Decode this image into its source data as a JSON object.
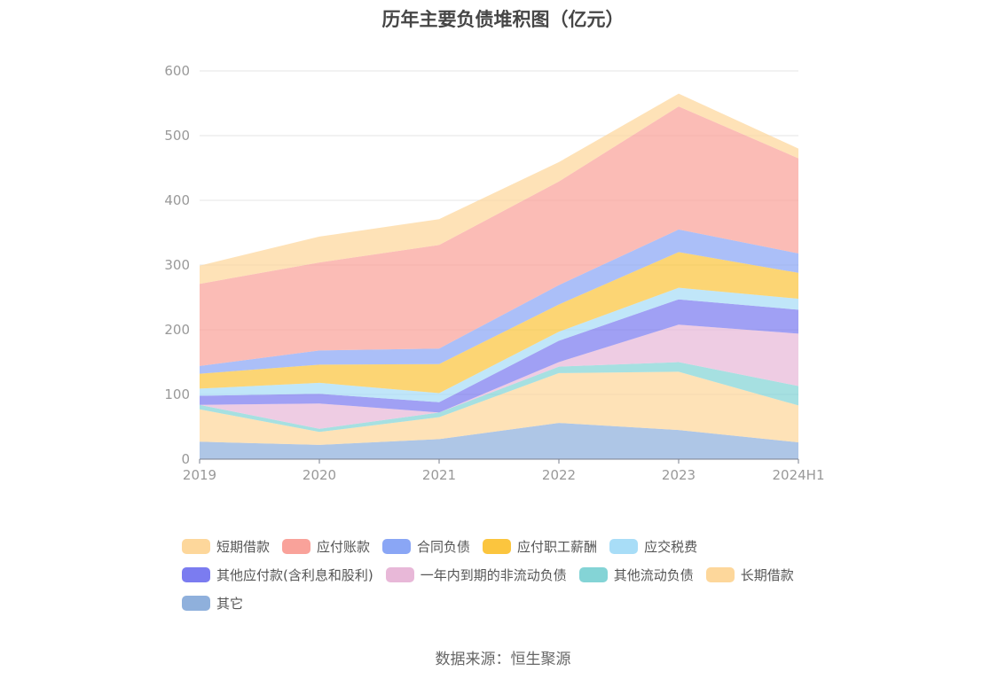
{
  "title": "历年主要负债堆积图（亿元）",
  "source": "数据来源：恒生聚源",
  "chart_data": {
    "type": "area",
    "stacked": true,
    "title": "历年主要负债堆积图（亿元）",
    "xlabel": "",
    "ylabel": "",
    "x": [
      "2019",
      "2020",
      "2021",
      "2022",
      "2023",
      "2024H1"
    ],
    "ylim": [
      0,
      600
    ],
    "yticks": [
      0,
      100,
      200,
      300,
      400,
      500,
      600
    ],
    "grid": true,
    "legend_position": "bottom",
    "series": [
      {
        "name": "其它",
        "color": "#8fb0dc",
        "values": [
          27,
          22,
          31,
          56,
          45,
          26
        ]
      },
      {
        "name": "长期借款",
        "color": "#fdd79b",
        "values": [
          50,
          20,
          34,
          77,
          90,
          57
        ]
      },
      {
        "name": "其他流动负债",
        "color": "#84d4d6",
        "values": [
          7,
          5,
          7,
          10,
          15,
          30
        ]
      },
      {
        "name": "一年内到期的非流动负债",
        "color": "#e8b8d8",
        "values": [
          0,
          39,
          0,
          7,
          58,
          81
        ]
      },
      {
        "name": "其他应付款(含利息和股利)",
        "color": "#7b7cf0",
        "values": [
          14,
          15,
          16,
          33,
          39,
          37
        ]
      },
      {
        "name": "应交税费",
        "color": "#a8ddf7",
        "values": [
          11,
          17,
          14,
          14,
          18,
          17
        ]
      },
      {
        "name": "应付职工薪酬",
        "color": "#fbc53e",
        "values": [
          23,
          28,
          45,
          42,
          55,
          40
        ]
      },
      {
        "name": "合同负债",
        "color": "#8aa6f5",
        "values": [
          12,
          22,
          24,
          30,
          35,
          30
        ]
      },
      {
        "name": "应付账款",
        "color": "#f9a29a",
        "values": [
          127,
          136,
          160,
          160,
          190,
          147
        ]
      },
      {
        "name": "短期借款",
        "color": "#fdd79b",
        "values": [
          28,
          40,
          40,
          30,
          20,
          15
        ]
      }
    ]
  },
  "legend": {
    "rows": [
      [
        {
          "label": "短期借款",
          "color": "#fdd79b"
        },
        {
          "label": "应付账款",
          "color": "#f9a29a"
        },
        {
          "label": "合同负债",
          "color": "#8aa6f5"
        },
        {
          "label": "应付职工薪酬",
          "color": "#fbc53e"
        },
        {
          "label": "应交税费",
          "color": "#a8ddf7"
        }
      ],
      [
        {
          "label": "其他应付款(含利息和股利)",
          "color": "#7b7cf0"
        },
        {
          "label": "一年内到期的非流动负债",
          "color": "#e8b8d8"
        },
        {
          "label": "其他流动负债",
          "color": "#84d4d6"
        },
        {
          "label": "长期借款",
          "color": "#fdd79b"
        }
      ],
      [
        {
          "label": "其它",
          "color": "#8fb0dc"
        }
      ]
    ]
  }
}
